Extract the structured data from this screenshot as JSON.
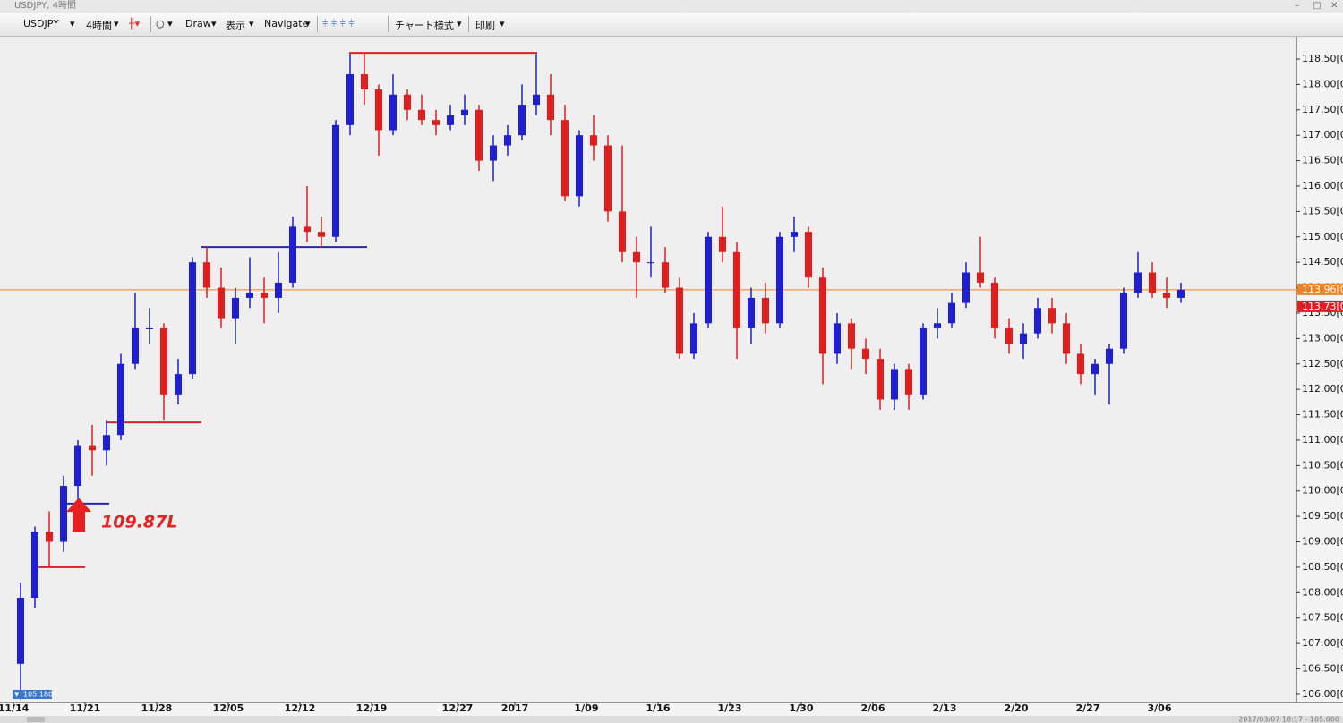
{
  "window_title": "USDJPY, 4時間",
  "toolbar": {
    "symbol": "USDJPY",
    "timeframe": "4時間",
    "draw": "Draw",
    "view": "表示",
    "navigate": "Navigate",
    "chart_style": "チャート様式",
    "print": "印刷"
  },
  "status_time": "2017/03/07 18:17 - 105.000",
  "chart_data": {
    "type": "candlestick",
    "categories": [
      "11/14",
      null,
      null,
      null,
      null,
      "11/21",
      null,
      null,
      null,
      null,
      "11/28",
      null,
      null,
      null,
      null,
      "12/05",
      null,
      null,
      null,
      null,
      "12/12",
      null,
      null,
      null,
      null,
      "12/19",
      null,
      null,
      null,
      null,
      null,
      "12/27",
      null,
      null,
      null,
      "2017",
      null,
      null,
      null,
      null,
      "1/09",
      null,
      null,
      null,
      null,
      "1/16",
      null,
      null,
      null,
      null,
      "1/23",
      null,
      null,
      null,
      null,
      "1/30",
      null,
      null,
      null,
      null,
      "2/06",
      null,
      null,
      null,
      null,
      "2/13",
      null,
      null,
      null,
      null,
      "2/20",
      null,
      null,
      null,
      null,
      "2/27",
      null,
      null,
      null,
      null,
      "3/06",
      null
    ],
    "candles": [
      [
        106.6,
        108.2,
        105.9,
        107.9
      ],
      [
        107.9,
        109.3,
        107.7,
        109.2
      ],
      [
        109.2,
        109.6,
        108.5,
        109.0
      ],
      [
        109.0,
        110.3,
        108.8,
        110.1
      ],
      [
        110.1,
        111.0,
        109.8,
        110.9
      ],
      [
        110.9,
        111.3,
        110.3,
        110.8
      ],
      [
        110.8,
        111.4,
        110.5,
        111.1
      ],
      [
        111.1,
        112.7,
        111.0,
        112.5
      ],
      [
        112.5,
        113.9,
        112.4,
        113.2
      ],
      [
        113.2,
        113.6,
        112.9,
        113.2
      ],
      [
        113.2,
        113.3,
        111.4,
        111.9
      ],
      [
        111.9,
        112.6,
        111.7,
        112.3
      ],
      [
        112.3,
        114.6,
        112.2,
        114.5
      ],
      [
        114.5,
        114.8,
        113.8,
        114.0
      ],
      [
        114.0,
        114.4,
        113.2,
        113.4
      ],
      [
        113.4,
        114.0,
        112.9,
        113.8
      ],
      [
        113.8,
        114.6,
        113.6,
        113.9
      ],
      [
        113.9,
        114.2,
        113.3,
        113.8
      ],
      [
        113.8,
        114.7,
        113.5,
        114.1
      ],
      [
        114.1,
        115.4,
        114.0,
        115.2
      ],
      [
        115.2,
        116.0,
        114.9,
        115.1
      ],
      [
        115.1,
        115.4,
        114.8,
        115.0
      ],
      [
        115.0,
        117.3,
        114.9,
        117.2
      ],
      [
        117.2,
        118.6,
        117.0,
        118.2
      ],
      [
        118.2,
        118.6,
        117.6,
        117.9
      ],
      [
        117.9,
        118.0,
        116.6,
        117.1
      ],
      [
        117.1,
        118.2,
        117.0,
        117.8
      ],
      [
        117.8,
        117.9,
        117.3,
        117.5
      ],
      [
        117.5,
        117.8,
        117.2,
        117.3
      ],
      [
        117.3,
        117.5,
        117.0,
        117.2
      ],
      [
        117.2,
        117.6,
        117.1,
        117.4
      ],
      [
        117.4,
        117.8,
        117.2,
        117.5
      ],
      [
        117.5,
        117.6,
        116.3,
        116.5
      ],
      [
        116.5,
        117.0,
        116.1,
        116.8
      ],
      [
        116.8,
        117.2,
        116.6,
        117.0
      ],
      [
        117.0,
        118.0,
        116.9,
        117.6
      ],
      [
        117.6,
        118.6,
        117.4,
        117.8
      ],
      [
        117.8,
        118.2,
        117.0,
        117.3
      ],
      [
        117.3,
        117.6,
        115.7,
        115.8
      ],
      [
        115.8,
        117.1,
        115.6,
        117.0
      ],
      [
        117.0,
        117.4,
        116.5,
        116.8
      ],
      [
        116.8,
        117.0,
        115.3,
        115.5
      ],
      [
        115.5,
        116.8,
        114.5,
        114.7
      ],
      [
        114.7,
        115.0,
        113.8,
        114.5
      ],
      [
        114.5,
        115.2,
        114.2,
        114.5
      ],
      [
        114.5,
        114.8,
        113.9,
        114.0
      ],
      [
        114.0,
        114.2,
        112.6,
        112.7
      ],
      [
        112.7,
        113.5,
        112.6,
        113.3
      ],
      [
        113.3,
        115.1,
        113.2,
        115.0
      ],
      [
        115.0,
        115.6,
        114.5,
        114.7
      ],
      [
        114.7,
        114.9,
        112.6,
        113.2
      ],
      [
        113.2,
        114.0,
        112.9,
        113.8
      ],
      [
        113.8,
        114.1,
        113.1,
        113.3
      ],
      [
        113.3,
        115.1,
        113.2,
        115.0
      ],
      [
        115.0,
        115.4,
        114.7,
        115.1
      ],
      [
        115.1,
        115.2,
        114.0,
        114.2
      ],
      [
        114.2,
        114.4,
        112.1,
        112.7
      ],
      [
        112.7,
        113.5,
        112.5,
        113.3
      ],
      [
        113.3,
        113.4,
        112.4,
        112.8
      ],
      [
        112.8,
        113.0,
        112.3,
        112.6
      ],
      [
        112.6,
        112.8,
        111.6,
        111.8
      ],
      [
        111.8,
        112.5,
        111.6,
        112.4
      ],
      [
        112.4,
        112.5,
        111.6,
        111.9
      ],
      [
        111.9,
        113.3,
        111.8,
        113.2
      ],
      [
        113.2,
        113.6,
        113.0,
        113.3
      ],
      [
        113.3,
        113.9,
        113.2,
        113.7
      ],
      [
        113.7,
        114.5,
        113.6,
        114.3
      ],
      [
        114.3,
        115.0,
        114.0,
        114.1
      ],
      [
        114.1,
        114.2,
        113.0,
        113.2
      ],
      [
        113.2,
        113.4,
        112.7,
        112.9
      ],
      [
        112.9,
        113.3,
        112.6,
        113.1
      ],
      [
        113.1,
        113.8,
        113.0,
        113.6
      ],
      [
        113.6,
        113.8,
        113.1,
        113.3
      ],
      [
        113.3,
        113.5,
        112.5,
        112.7
      ],
      [
        112.7,
        112.9,
        112.1,
        112.3
      ],
      [
        112.3,
        112.6,
        111.9,
        112.5
      ],
      [
        112.5,
        112.9,
        111.7,
        112.8
      ],
      [
        112.8,
        114.0,
        112.7,
        113.9
      ],
      [
        113.9,
        114.7,
        113.8,
        114.3
      ],
      [
        114.3,
        114.5,
        113.8,
        113.9
      ],
      [
        113.9,
        114.2,
        113.6,
        113.8
      ],
      [
        113.8,
        114.1,
        113.7,
        113.96
      ]
    ],
    "up_color": "#1e1ed2",
    "down_color": "#e01e1e",
    "ylim": [
      105.84,
      118.94
    ],
    "yticks": [
      {
        "value": 106,
        "label": "106.00[0"
      },
      {
        "value": 106.5,
        "label": "106.50[0"
      },
      {
        "value": 107,
        "label": "107.00[0"
      },
      {
        "value": 107.5,
        "label": "107.50[0"
      },
      {
        "value": 108,
        "label": "108.00[0"
      },
      {
        "value": 108.5,
        "label": "108.50[0"
      },
      {
        "value": 109,
        "label": "109.00[0"
      },
      {
        "value": 109.5,
        "label": "109.50[0"
      },
      {
        "value": 110,
        "label": "110.00[0"
      },
      {
        "value": 110.5,
        "label": "110.50[0"
      },
      {
        "value": 111,
        "label": "111.00[0"
      },
      {
        "value": 111.5,
        "label": "111.50[0"
      },
      {
        "value": 112,
        "label": "112.00[0"
      },
      {
        "value": 112.5,
        "label": "112.50[0"
      },
      {
        "value": 113,
        "label": "113.00[0"
      },
      {
        "value": 113.5,
        "label": "113.50[0"
      },
      {
        "value": 114,
        "label": "114.00[0"
      },
      {
        "value": 114.5,
        "label": "114.50[0"
      },
      {
        "value": 115,
        "label": "115.00[0"
      },
      {
        "value": 115.5,
        "label": "115.50[0"
      },
      {
        "value": 116,
        "label": "116.00[0"
      },
      {
        "value": 116.5,
        "label": "116.50[0"
      },
      {
        "value": 117,
        "label": "117.00[0"
      },
      {
        "value": 117.5,
        "label": "117.50[0"
      },
      {
        "value": 118,
        "label": "118.00[0"
      },
      {
        "value": 118.5,
        "label": "118.50[0"
      }
    ],
    "levels": [
      {
        "value": 118.62,
        "color": "#e01e1e"
      },
      {
        "value": 114.8,
        "color": "#2a2aa0"
      },
      {
        "value": 111.35,
        "color": "#e01e1e"
      },
      {
        "value": 109.75,
        "color": "#2a2aa0"
      },
      {
        "value": 108.5,
        "color": "#e01e1e"
      }
    ],
    "bid": {
      "value": 113.96,
      "label": "113.96[0",
      "color": "#f08020"
    },
    "ask": {
      "value": 113.73,
      "label": "113.73[0",
      "color": "#e01e1e"
    },
    "annotation": {
      "value": 109.87,
      "label": "109.87L"
    },
    "low_marker": {
      "value": 105.18,
      "label": "105.180"
    }
  }
}
